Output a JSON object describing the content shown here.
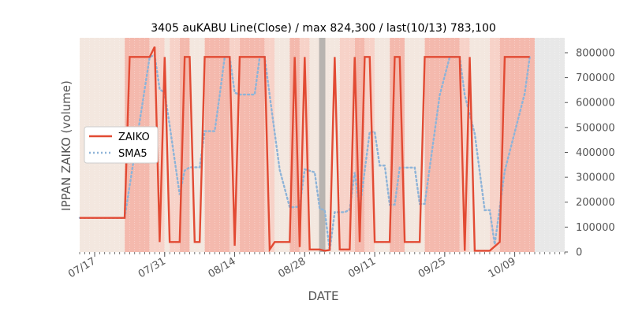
{
  "chart_data": {
    "type": "line",
    "title": "3405 auKABU Line(Close) / max 824,300 / last(10/13) 783,100",
    "xlabel": "DATE",
    "ylabel": "IPPAN ZAIKO (volume)",
    "ylim": [
      0,
      860000
    ],
    "xlim": [
      0,
      97
    ],
    "yticks": [
      0,
      100000,
      200000,
      300000,
      400000,
      500000,
      600000,
      700000,
      800000
    ],
    "ytick_labels": [
      "0",
      "100000",
      "200000",
      "300000",
      "400000",
      "500000",
      "600000",
      "700000",
      "800000"
    ],
    "xticks": [
      {
        "label": "07/17",
        "x": 3
      },
      {
        "label": "07/31",
        "x": 17
      },
      {
        "label": "08/14",
        "x": 31
      },
      {
        "label": "08/28",
        "x": 45
      },
      {
        "label": "09/11",
        "x": 59
      },
      {
        "label": "09/25",
        "x": 73
      },
      {
        "label": "10/09",
        "x": 87
      }
    ],
    "legend": {
      "position": "center-left",
      "entries": [
        "ZAIKO",
        "SMA5"
      ]
    },
    "colors": {
      "zaiko": "#e24a33",
      "sma5": "#8eb4d8",
      "band_strong": "#f4b9ad",
      "band_medium": "#f7d2c8",
      "band_light": "#f3e7df",
      "highlight": "#b8b4b0",
      "background": "#e8e8e8"
    },
    "highlight_x": 48.5,
    "series": [
      {
        "name": "ZAIKO",
        "style": "solid",
        "points": [
          [
            0,
            137000
          ],
          [
            9,
            137000
          ],
          [
            10,
            783000
          ],
          [
            14,
            783000
          ],
          [
            15,
            824000
          ],
          [
            16,
            40000
          ],
          [
            17,
            783000
          ],
          [
            18,
            40000
          ],
          [
            20,
            40000
          ],
          [
            21,
            783000
          ],
          [
            22,
            783000
          ],
          [
            23,
            40000
          ],
          [
            24,
            40000
          ],
          [
            25,
            783000
          ],
          [
            30,
            783000
          ],
          [
            31,
            25000
          ],
          [
            32,
            783000
          ],
          [
            37,
            783000
          ],
          [
            38,
            10000
          ],
          [
            39,
            40000
          ],
          [
            42,
            40000
          ],
          [
            43,
            783000
          ],
          [
            44,
            20000
          ],
          [
            45,
            783000
          ],
          [
            46,
            10000
          ],
          [
            48,
            10000
          ],
          [
            49,
            5000
          ],
          [
            50,
            8000
          ],
          [
            51,
            783000
          ],
          [
            52,
            10000
          ],
          [
            54,
            10000
          ],
          [
            55,
            783000
          ],
          [
            56,
            40000
          ],
          [
            57,
            783000
          ],
          [
            58,
            783000
          ],
          [
            59,
            40000
          ],
          [
            62,
            40000
          ],
          [
            63,
            783000
          ],
          [
            64,
            783000
          ],
          [
            65,
            40000
          ],
          [
            68,
            40000
          ],
          [
            69,
            783000
          ],
          [
            76,
            783000
          ],
          [
            77,
            5000
          ],
          [
            78,
            783000
          ],
          [
            79,
            5000
          ],
          [
            82,
            5000
          ],
          [
            84,
            40000
          ],
          [
            85,
            783000
          ],
          [
            90,
            783000
          ]
        ]
      },
      {
        "name": "SMA5",
        "style": "dotted",
        "points": [
          [
            0,
            137000
          ],
          [
            9,
            137000
          ],
          [
            10,
            266000
          ],
          [
            12,
            524000
          ],
          [
            14,
            783000
          ],
          [
            15,
            791000
          ],
          [
            16,
            653000
          ],
          [
            17,
            640000
          ],
          [
            18,
            508000
          ],
          [
            20,
            230000
          ],
          [
            21,
            327000
          ],
          [
            22,
            340000
          ],
          [
            23,
            340000
          ],
          [
            24,
            340000
          ],
          [
            25,
            485000
          ],
          [
            26,
            485000
          ],
          [
            27,
            485000
          ],
          [
            28,
            630000
          ],
          [
            29,
            783000
          ],
          [
            30,
            783000
          ],
          [
            31,
            640000
          ],
          [
            32,
            632000
          ],
          [
            35,
            632000
          ],
          [
            36,
            783000
          ],
          [
            37,
            783000
          ],
          [
            38,
            628000
          ],
          [
            40,
            330000
          ],
          [
            42,
            180000
          ],
          [
            43,
            180000
          ],
          [
            44,
            183000
          ],
          [
            45,
            332000
          ],
          [
            47,
            320000
          ],
          [
            48,
            174000
          ],
          [
            49,
            168000
          ],
          [
            50,
            5000
          ],
          [
            51,
            160000
          ],
          [
            53,
            160000
          ],
          [
            54,
            170000
          ],
          [
            55,
            320000
          ],
          [
            56,
            170000
          ],
          [
            58,
            482000
          ],
          [
            59,
            482000
          ],
          [
            60,
            347000
          ],
          [
            61,
            347000
          ],
          [
            62,
            190000
          ],
          [
            63,
            190000
          ],
          [
            64,
            339000
          ],
          [
            66,
            339000
          ],
          [
            67,
            339000
          ],
          [
            68,
            193000
          ],
          [
            69,
            193000
          ],
          [
            72,
            630000
          ],
          [
            74,
            783000
          ],
          [
            76,
            783000
          ],
          [
            77,
            630000
          ],
          [
            79,
            475000
          ],
          [
            81,
            168000
          ],
          [
            82,
            168000
          ],
          [
            83,
            30000
          ],
          [
            85,
            325000
          ],
          [
            87,
            481000
          ],
          [
            89,
            637000
          ],
          [
            90,
            783000
          ]
        ]
      }
    ],
    "bands": [
      [
        0,
        9,
        "light"
      ],
      [
        9,
        14,
        "strong"
      ],
      [
        14,
        17,
        "medium"
      ],
      [
        17,
        18,
        "light"
      ],
      [
        18,
        20,
        "medium"
      ],
      [
        20,
        22,
        "strong"
      ],
      [
        22,
        25,
        "light"
      ],
      [
        25,
        30,
        "strong"
      ],
      [
        30,
        32,
        "medium"
      ],
      [
        32,
        37,
        "strong"
      ],
      [
        37,
        39,
        "medium"
      ],
      [
        39,
        42,
        "light"
      ],
      [
        42,
        44,
        "strong"
      ],
      [
        44,
        46,
        "medium"
      ],
      [
        46,
        48,
        "light"
      ],
      [
        49,
        52,
        "light"
      ],
      [
        52,
        55,
        "medium"
      ],
      [
        55,
        57,
        "strong"
      ],
      [
        57,
        59,
        "medium"
      ],
      [
        59,
        62,
        "light"
      ],
      [
        62,
        65,
        "strong"
      ],
      [
        65,
        69,
        "light"
      ],
      [
        69,
        76,
        "strong"
      ],
      [
        76,
        78,
        "medium"
      ],
      [
        78,
        82,
        "light"
      ],
      [
        82,
        84,
        "medium"
      ],
      [
        84,
        91,
        "strong"
      ]
    ]
  }
}
